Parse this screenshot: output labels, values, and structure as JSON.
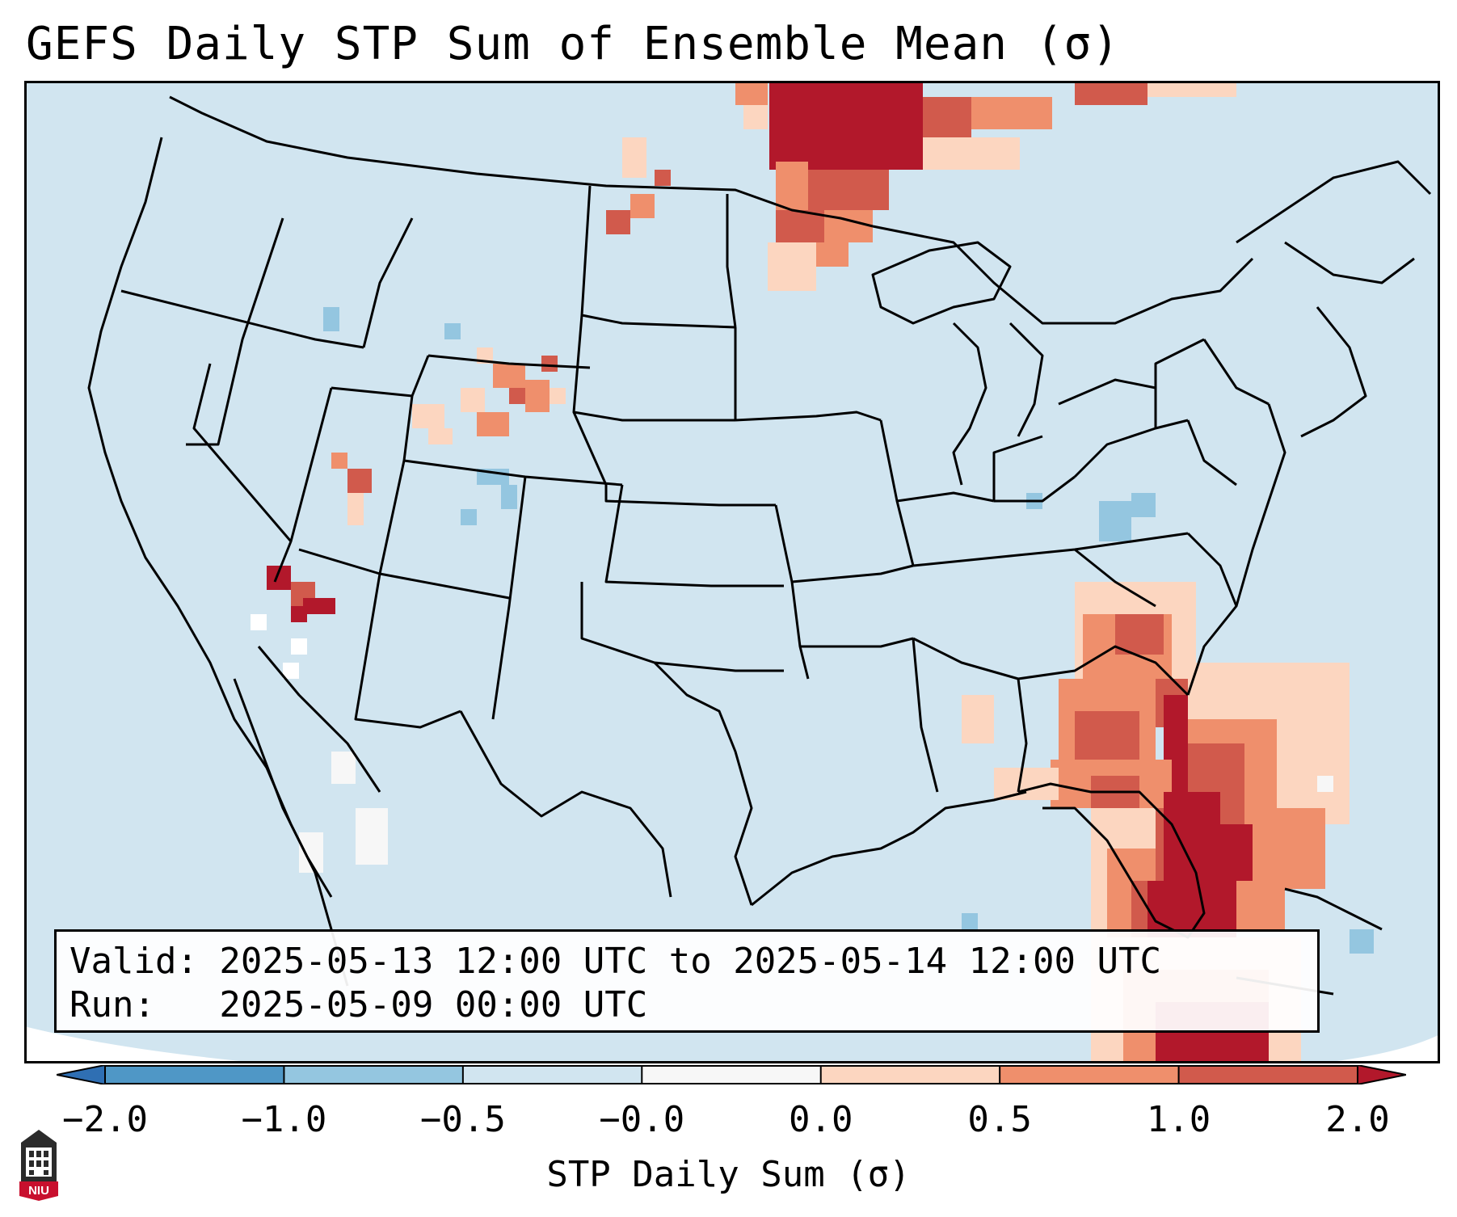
{
  "title": "GEFS Daily STP Sum of Ensemble Mean (σ)",
  "info": {
    "valid_line": "Valid: 2025-05-13 12:00 UTC to 2025-05-14 12:00 UTC",
    "run_line": "Run:   2025-05-09 00:00 UTC"
  },
  "colorbar": {
    "label": "STP Daily Sum (σ)",
    "ticks": [
      "−2.0",
      "−1.0",
      "−0.5",
      "−0.0",
      "0.0",
      "0.5",
      "1.0",
      "2.0"
    ],
    "colors": [
      "#2f6fb3",
      "#4f97c6",
      "#94c6e0",
      "#d1e5f0",
      "#f7f7f7",
      "#fcd6c0",
      "#ef8f6c",
      "#d15a4c",
      "#b2182b"
    ]
  },
  "map": {
    "background_color": "#d1e5f0",
    "field_anomalies": [
      {
        "region": "southern Canada / Ontario",
        "category": "2.0"
      },
      {
        "region": "Florida peninsula",
        "category": "2.0"
      },
      {
        "region": "Georgia / South Carolina",
        "category": "1.0"
      },
      {
        "region": "western Atlantic off Southeast coast",
        "category": "0.0"
      },
      {
        "region": "southern Nevada",
        "category": "2.0"
      },
      {
        "region": "Wyoming / Utah",
        "category": "0.5"
      },
      {
        "region": "West Virginia",
        "category": "-0.5"
      },
      {
        "region": "Baja California",
        "category": "-0.0"
      }
    ]
  },
  "logo": {
    "text": "NIU"
  }
}
